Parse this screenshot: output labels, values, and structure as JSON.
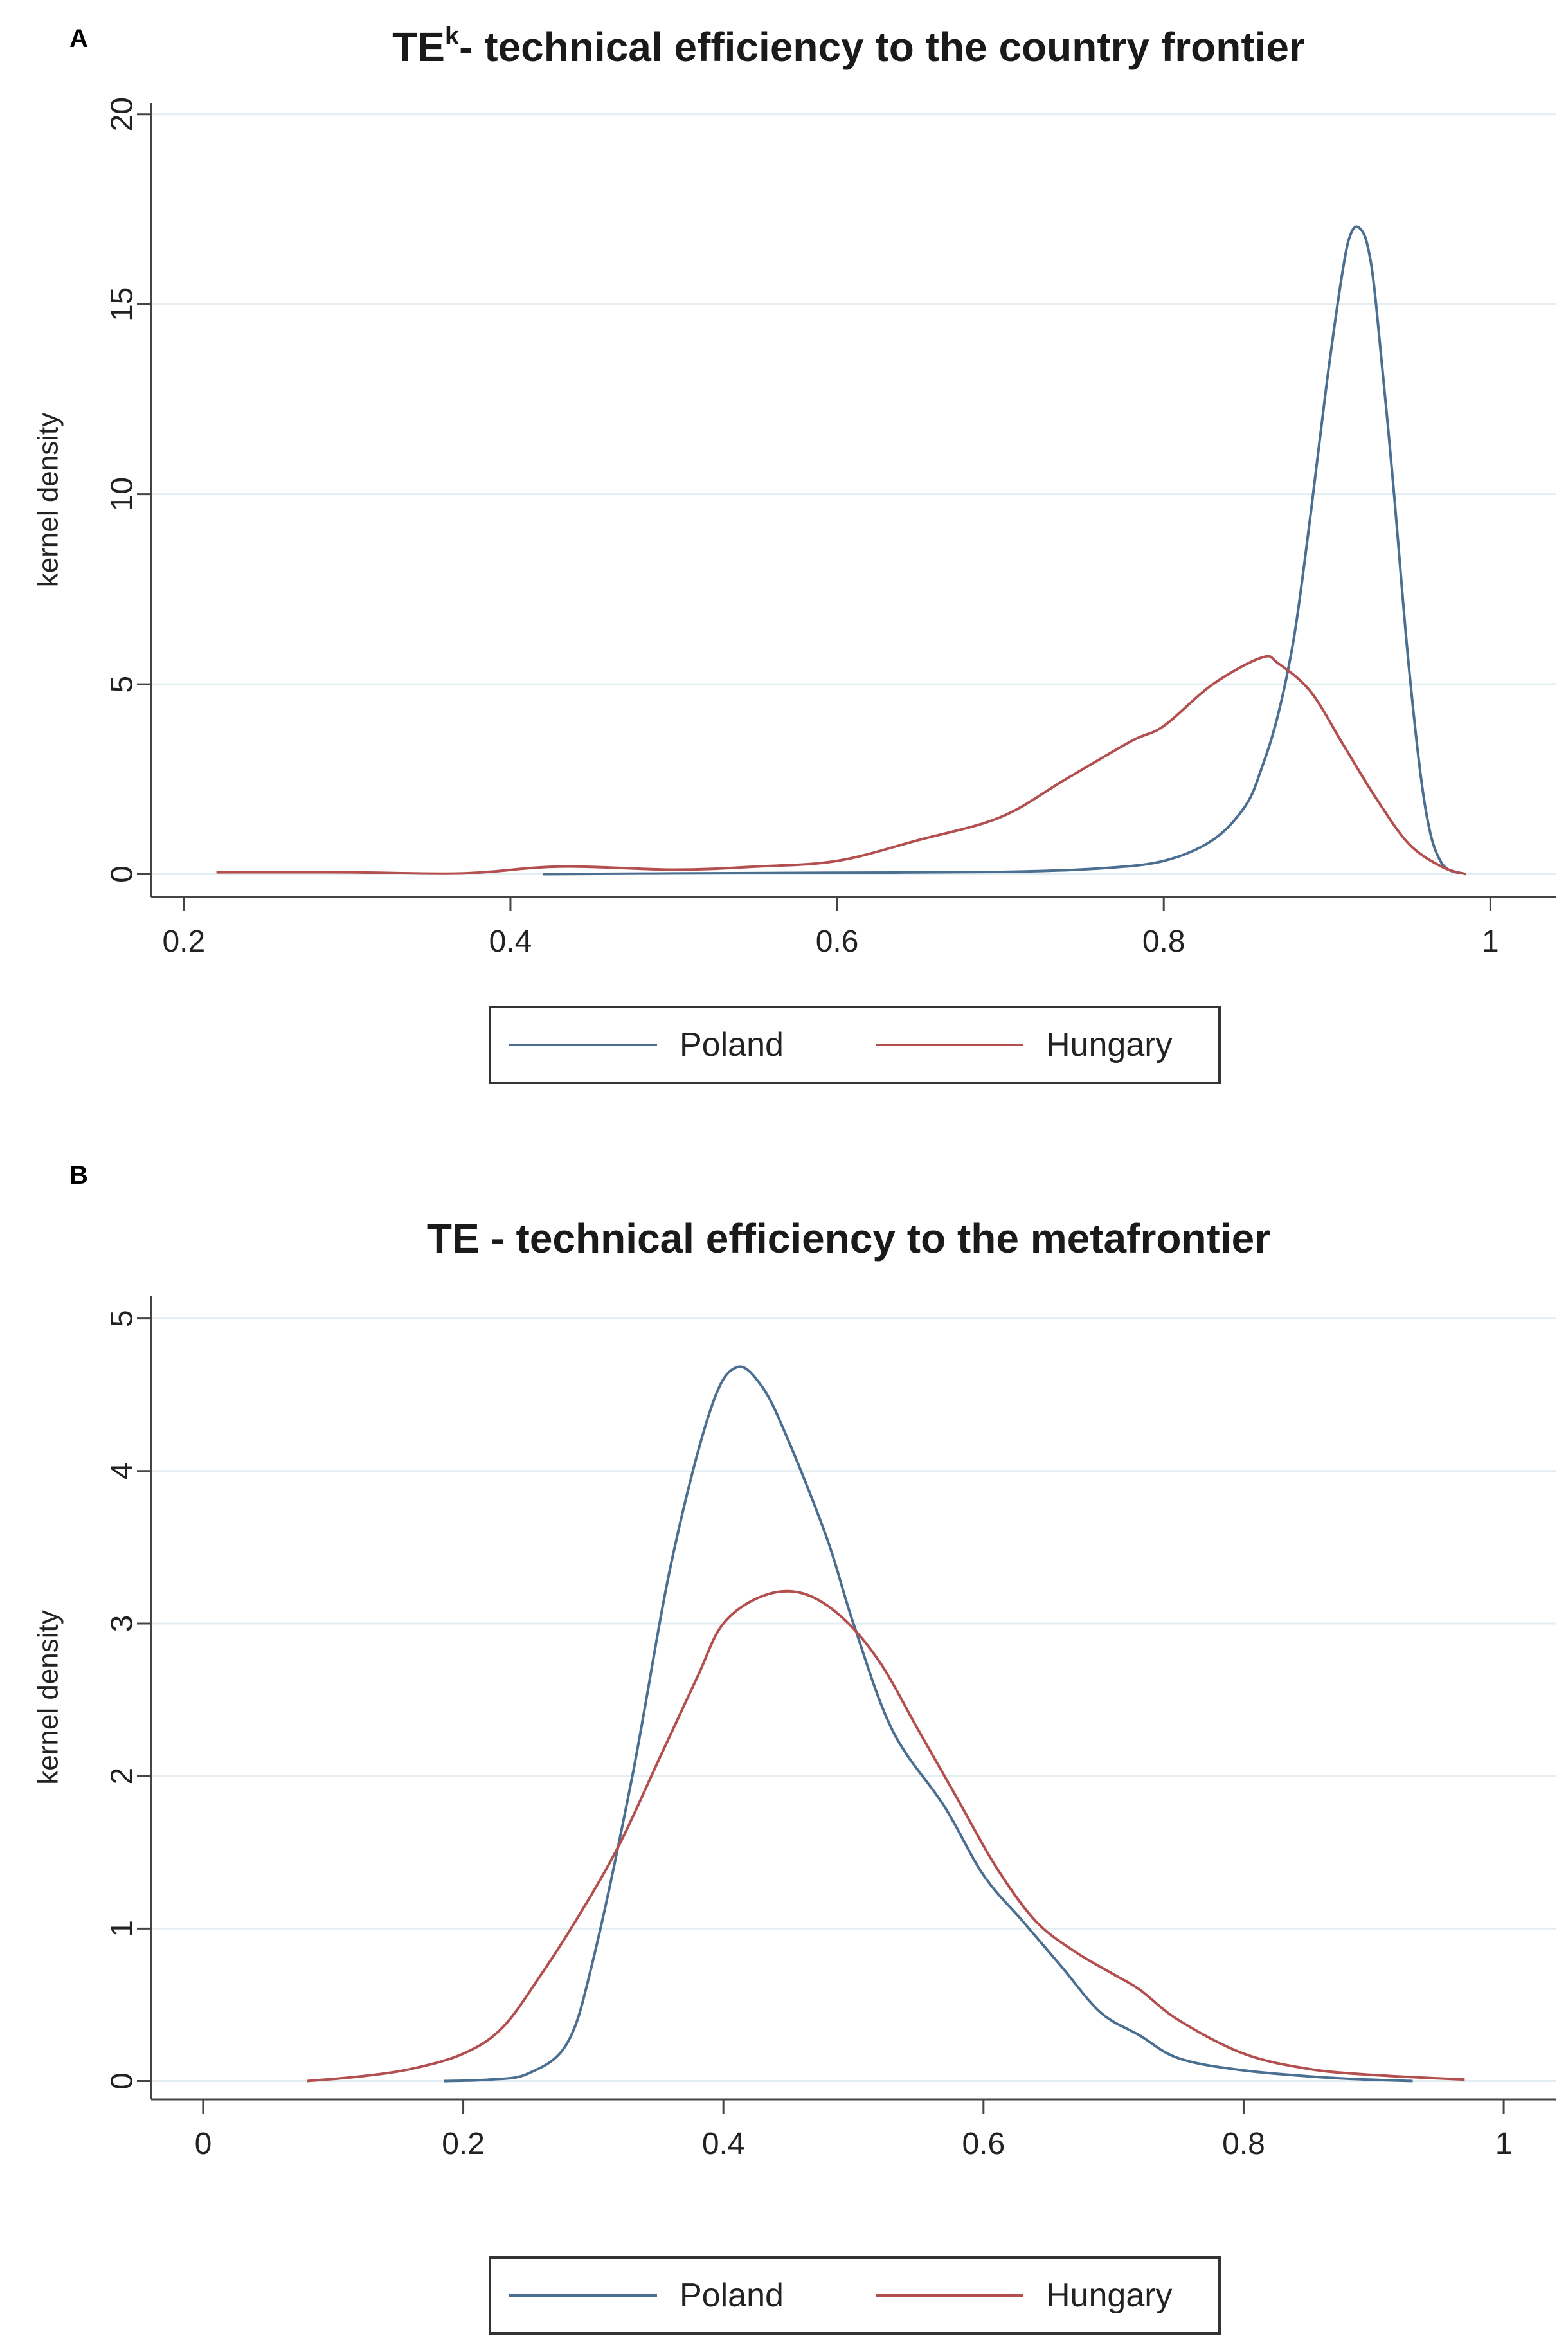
{
  "colors": {
    "poland": "#4a6f91",
    "hungary": "#b34f4f",
    "grid": "#e4eef2",
    "axis": "#444444"
  },
  "chart_data": [
    {
      "type": "line",
      "panel_label": "A",
      "title_main": "TE",
      "title_sup": "k",
      "title_rest": "- technical efficiency to the country frontier",
      "xlabel": "",
      "ylabel": "kernel density",
      "xlim": [
        0.18,
        1.04
      ],
      "ylim": [
        -0.6,
        20.3
      ],
      "xticks": [
        0.2,
        0.4,
        0.6,
        0.8,
        1
      ],
      "xtick_labels": [
        "0.2",
        "0.4",
        "0.6",
        "0.8",
        "1"
      ],
      "yticks": [
        0,
        5,
        10,
        15,
        20
      ],
      "ytick_labels": [
        "0",
        "5",
        "10",
        "15",
        "20"
      ],
      "grid": true,
      "legend": "bottom",
      "series": [
        {
          "name": "Poland",
          "color_key": "poland",
          "x": [
            0.42,
            0.5,
            0.6,
            0.7,
            0.76,
            0.8,
            0.83,
            0.85,
            0.86,
            0.87,
            0.88,
            0.89,
            0.9,
            0.91,
            0.915,
            0.92,
            0.925,
            0.93,
            0.94,
            0.95,
            0.96,
            0.97,
            0.985
          ],
          "y": [
            0.0,
            0.02,
            0.04,
            0.06,
            0.15,
            0.35,
            0.9,
            1.8,
            2.8,
            4.2,
            6.3,
            9.5,
            13.0,
            16.0,
            16.9,
            17.0,
            16.5,
            15.0,
            10.5,
            5.5,
            1.8,
            0.3,
            0.0
          ]
        },
        {
          "name": "Hungary",
          "color_key": "hungary",
          "x": [
            0.22,
            0.3,
            0.37,
            0.43,
            0.5,
            0.55,
            0.6,
            0.65,
            0.7,
            0.74,
            0.78,
            0.8,
            0.83,
            0.86,
            0.87,
            0.89,
            0.91,
            0.93,
            0.95,
            0.97,
            0.985
          ],
          "y": [
            0.05,
            0.05,
            0.02,
            0.2,
            0.12,
            0.2,
            0.35,
            0.9,
            1.5,
            2.5,
            3.5,
            3.9,
            5.0,
            5.7,
            5.55,
            4.8,
            3.4,
            2.0,
            0.8,
            0.2,
            0.0
          ]
        }
      ]
    },
    {
      "type": "line",
      "panel_label": "B",
      "title_main": "TE - technical efficiency to the metafrontier",
      "title_sup": "",
      "title_rest": "",
      "xlabel": "",
      "ylabel": "kernel density",
      "xlim": [
        -0.04,
        1.04
      ],
      "ylim": [
        -0.12,
        5.15
      ],
      "xticks": [
        0,
        0.2,
        0.4,
        0.6,
        0.8,
        1
      ],
      "xtick_labels": [
        "0",
        "0.2",
        "0.4",
        "0.6",
        "0.8",
        "1"
      ],
      "yticks": [
        0,
        1,
        2,
        3,
        4,
        5
      ],
      "ytick_labels": [
        "0",
        "1",
        "2",
        "3",
        "4",
        "5"
      ],
      "grid": true,
      "legend": "bottom",
      "series": [
        {
          "name": "Poland",
          "color_key": "poland",
          "x": [
            0.185,
            0.22,
            0.25,
            0.28,
            0.3,
            0.33,
            0.36,
            0.39,
            0.41,
            0.43,
            0.45,
            0.48,
            0.5,
            0.53,
            0.57,
            0.6,
            0.63,
            0.66,
            0.69,
            0.72,
            0.75,
            0.8,
            0.87,
            0.93
          ],
          "y": [
            0.0,
            0.01,
            0.05,
            0.25,
            0.8,
            2.0,
            3.4,
            4.4,
            4.68,
            4.55,
            4.2,
            3.55,
            3.0,
            2.3,
            1.8,
            1.35,
            1.05,
            0.75,
            0.45,
            0.3,
            0.15,
            0.07,
            0.02,
            0.0
          ]
        },
        {
          "name": "Hungary",
          "color_key": "hungary",
          "x": [
            0.08,
            0.12,
            0.16,
            0.2,
            0.23,
            0.26,
            0.29,
            0.32,
            0.35,
            0.38,
            0.4,
            0.43,
            0.46,
            0.49,
            0.52,
            0.55,
            0.58,
            0.61,
            0.64,
            0.67,
            0.7,
            0.72,
            0.75,
            0.8,
            0.85,
            0.9,
            0.97
          ],
          "y": [
            0.0,
            0.03,
            0.08,
            0.18,
            0.35,
            0.7,
            1.1,
            1.55,
            2.1,
            2.65,
            3.0,
            3.18,
            3.2,
            3.05,
            2.75,
            2.3,
            1.85,
            1.4,
            1.05,
            0.85,
            0.7,
            0.6,
            0.4,
            0.18,
            0.08,
            0.04,
            0.01
          ]
        }
      ]
    }
  ]
}
